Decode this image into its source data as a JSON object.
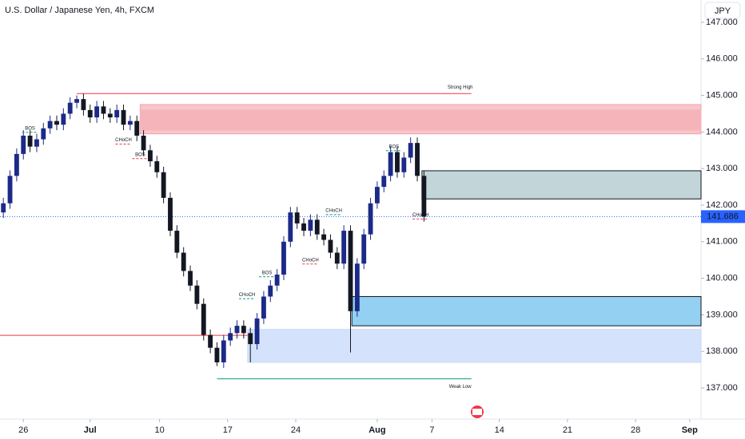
{
  "chart_data": {
    "type": "candlestick",
    "title": "U.S. Dollar / Japanese Yen, 4h, FXCM",
    "currency": "JPY",
    "up_color": "#1c2a87",
    "down_color": "#131722",
    "open": [
      141.8,
      142.05,
      142.8,
      143.4,
      143.9,
      143.6,
      143.8,
      144.1,
      144.3,
      144.2,
      144.5,
      144.8,
      144.9,
      144.6,
      144.4,
      144.7,
      144.5,
      144.4,
      144.6,
      144.2,
      144.3,
      143.9,
      143.5,
      143.2,
      142.9,
      142.2,
      141.3,
      140.7,
      140.2,
      139.8,
      139.3,
      138.45,
      138.1,
      137.7,
      138.3,
      138.5,
      138.7,
      138.5,
      138.2,
      138.9,
      139.5,
      139.8,
      140.1,
      141.0,
      141.8,
      141.5,
      141.3,
      141.6,
      141.2,
      141.05,
      140.7,
      140.4,
      141.3,
      139.1,
      140.4,
      141.2,
      142.05,
      142.5,
      142.8,
      143.45,
      142.9,
      143.3,
      143.7,
      142.8
    ],
    "high": [
      142.2,
      142.95,
      143.55,
      144.05,
      144.05,
      143.95,
      144.25,
      144.45,
      144.45,
      144.65,
      144.95,
      145.0,
      145.05,
      144.75,
      144.85,
      144.85,
      144.65,
      144.75,
      144.75,
      144.45,
      144.45,
      144.05,
      143.65,
      143.35,
      143.05,
      142.35,
      141.45,
      140.85,
      140.35,
      139.95,
      139.45,
      138.6,
      138.25,
      138.45,
      138.65,
      138.85,
      138.85,
      138.65,
      139.05,
      139.65,
      139.95,
      140.25,
      141.15,
      141.95,
      141.95,
      141.65,
      141.75,
      141.75,
      141.35,
      141.2,
      140.85,
      141.45,
      141.45,
      140.55,
      141.35,
      142.2,
      142.65,
      142.95,
      143.6,
      143.6,
      143.45,
      143.85,
      143.85,
      142.95
    ],
    "low": [
      141.65,
      141.9,
      142.65,
      143.25,
      143.45,
      143.45,
      143.65,
      143.95,
      144.05,
      144.05,
      144.35,
      144.65,
      144.45,
      144.25,
      144.25,
      144.35,
      144.25,
      144.25,
      144.05,
      144.05,
      143.75,
      143.35,
      143.05,
      142.75,
      142.05,
      141.15,
      140.55,
      140.05,
      139.65,
      139.15,
      138.3,
      137.95,
      137.6,
      137.55,
      138.15,
      138.35,
      138.35,
      137.7,
      138.05,
      138.75,
      139.35,
      139.65,
      139.95,
      140.85,
      141.35,
      141.15,
      141.15,
      141.05,
      140.9,
      140.55,
      140.25,
      140.25,
      137.97,
      138.95,
      140.25,
      141.05,
      141.9,
      142.35,
      142.65,
      142.75,
      142.75,
      143.15,
      142.65,
      141.55
    ],
    "close": [
      142.05,
      142.8,
      143.4,
      143.9,
      143.6,
      143.8,
      144.1,
      144.3,
      144.2,
      144.5,
      144.8,
      144.9,
      144.6,
      144.4,
      144.7,
      144.5,
      144.4,
      144.6,
      144.2,
      144.3,
      143.9,
      143.5,
      143.2,
      142.9,
      142.2,
      141.3,
      140.7,
      140.2,
      139.8,
      139.3,
      138.45,
      138.1,
      137.7,
      138.3,
      138.5,
      138.7,
      138.5,
      138.2,
      138.9,
      139.5,
      139.8,
      140.1,
      141.0,
      141.8,
      141.5,
      141.3,
      141.6,
      141.2,
      141.05,
      140.7,
      140.4,
      141.3,
      139.1,
      140.4,
      141.2,
      142.05,
      142.5,
      142.8,
      143.45,
      142.9,
      143.3,
      143.7,
      142.8,
      141.686
    ],
    "xlim": [
      -0.5,
      104.5
    ],
    "xticks": [
      {
        "value": 3,
        "label": "26"
      },
      {
        "value": 13,
        "label": "Jul"
      },
      {
        "value": 23.4,
        "label": "10"
      },
      {
        "value": 33.6,
        "label": "17"
      },
      {
        "value": 43.8,
        "label": "24"
      },
      {
        "value": 56,
        "label": "Aug"
      },
      {
        "value": 64.2,
        "label": "7"
      },
      {
        "value": 74.3,
        "label": "14"
      },
      {
        "value": 84.5,
        "label": "21"
      },
      {
        "value": 94.7,
        "label": "28"
      },
      {
        "value": 102.8,
        "label": "Sep"
      }
    ],
    "ylim": [
      136.15,
      147.61
    ],
    "yticks": [
      {
        "value": 137,
        "label": "137.000"
      },
      {
        "value": 138,
        "label": "138.000"
      },
      {
        "value": 139,
        "label": "139.000"
      },
      {
        "value": 140,
        "label": "140.000"
      },
      {
        "value": 141,
        "label": "141.000"
      },
      {
        "value": 142,
        "label": "142.000"
      },
      {
        "value": 143,
        "label": "143.000"
      },
      {
        "value": 144,
        "label": "144.000"
      },
      {
        "value": 145,
        "label": "145.000"
      },
      {
        "value": 146,
        "label": "146.000"
      },
      {
        "value": 147,
        "label": "147.000"
      }
    ],
    "last_price": {
      "value": 141.686,
      "label": "141.686",
      "color": "#2962ff"
    },
    "zones": [
      {
        "x0": 20.5,
        "low": 143.95,
        "high": 144.75,
        "color": "#f7c6ca",
        "border": "#f5a0a6"
      },
      {
        "x0": 20.5,
        "low": 144.05,
        "high": 144.6,
        "color": "#f5b4b9",
        "border": "#f5b4b9"
      },
      {
        "x0": 62.7,
        "low": 142.17,
        "high": 142.94,
        "color": "#c2d5d9",
        "border": "#131722"
      },
      {
        "x0": 36.6,
        "low": 137.7,
        "high": 138.6,
        "color": "#d4e3fb",
        "border": "#c5d8f8"
      },
      {
        "x0": 52.2,
        "low": 138.7,
        "high": 139.5,
        "color": "#93d0f2",
        "border": "#131722"
      }
    ],
    "lines": [
      {
        "label": "Strong High",
        "value": 145.05,
        "x0": 11,
        "x1": 70.1,
        "color": "#f23645"
      },
      {
        "label": "Weak Low",
        "value": 137.25,
        "x0": 32,
        "x1": 70.1,
        "color": "#089981"
      },
      {
        "value": 138.44,
        "x0": -0.5,
        "x1": 36.6,
        "color": "#f23645"
      }
    ],
    "annotations": [
      {
        "text": "BOS",
        "x": 4,
        "y": 144.1,
        "color": "#089981"
      },
      {
        "text": "CHoCH",
        "x": 18,
        "y": 143.78,
        "color": "#f23645"
      },
      {
        "text": "BOS",
        "x": 20.5,
        "y": 143.38,
        "color": "#f23645"
      },
      {
        "text": "CHoCH",
        "x": 36.5,
        "y": 139.55,
        "color": "#089981"
      },
      {
        "text": "BOS",
        "x": 39.5,
        "y": 140.15,
        "color": "#089981"
      },
      {
        "text": "CHoCH",
        "x": 49.5,
        "y": 141.85,
        "color": "#089981"
      },
      {
        "text": "CHoCH",
        "x": 46,
        "y": 140.5,
        "color": "#f23645"
      },
      {
        "text": "BOS",
        "x": 58.5,
        "y": 143.6,
        "color": "#089981"
      },
      {
        "text": "CHoCH",
        "x": 62.5,
        "y": 141.73,
        "color": "#f23645"
      }
    ]
  }
}
